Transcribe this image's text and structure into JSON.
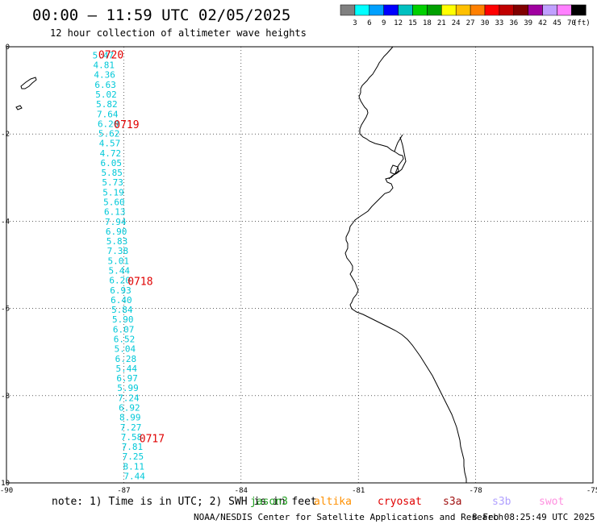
{
  "title": "00:00 – 11:59 UTC 02/05/2025",
  "subtitle": "12 hour collection of altimeter wave heights",
  "legend": {
    "unit": "(ft)",
    "colors": [
      "#808080",
      "#00ffff",
      "#00a0ff",
      "#0000ff",
      "#00c0c0",
      "#00d000",
      "#00a000",
      "#ffff00",
      "#ffc000",
      "#ff8000",
      "#ff0000",
      "#c00000",
      "#800000",
      "#a000a0",
      "#c0a0ff",
      "#ff80ff",
      "#000000"
    ],
    "labels": [
      "3",
      "6",
      "9",
      "12",
      "15",
      "18",
      "21",
      "24",
      "27",
      "30",
      "33",
      "36",
      "39",
      "42",
      "45",
      "70"
    ]
  },
  "axes": {
    "x_ticks": [
      "-90",
      "-87",
      "-84",
      "-81",
      "-78",
      "-75"
    ],
    "x_values": [
      -90,
      -87,
      -84,
      -81,
      -78,
      -75
    ],
    "y_ticks": [
      "0",
      "-2",
      "-4",
      "-6",
      "-8",
      "-10"
    ],
    "y_values": [
      0,
      -2,
      -4,
      -6,
      -8,
      -10
    ],
    "xlim": [
      -90,
      -75
    ],
    "ylim": [
      -10,
      0
    ]
  },
  "track": {
    "values": [
      "5.47",
      "4.81",
      "4.36",
      "6.63",
      "5.02",
      "5.82",
      "7.64",
      "6.20",
      "5.62",
      "4.57",
      "4.72",
      "6.05",
      "5.85",
      "5.73",
      "5.19",
      "5.60",
      "6.13",
      "7.94",
      "6.90",
      "5.83",
      "7.38",
      "5.01",
      "5.44",
      "6.20",
      "6.93",
      "6.40",
      "5.84",
      "5.90",
      "6.07",
      "6.52",
      "5.04",
      "6.28",
      "5.44",
      "6.97",
      "5.99",
      "7.24",
      "6.92",
      "8.99",
      "7.27",
      "7.58",
      "7.81",
      "7.25",
      "8.11",
      "7.44"
    ],
    "lon_start": -87.8,
    "lon_end": -87.0,
    "lat_start": -0.1,
    "lat_end": -9.75
  },
  "time_labels": [
    {
      "text": "0720",
      "lon": -87.65,
      "lat": -0.1
    },
    {
      "text": "0719",
      "lon": -87.25,
      "lat": -1.7
    },
    {
      "text": "0718",
      "lon": -86.9,
      "lat": -5.3
    },
    {
      "text": "0717",
      "lon": -86.6,
      "lat": -8.9
    }
  ],
  "note": {
    "prefix": "note: 1) Time is in UTC; 2) SWH is in feet",
    "sat_jason3": "jason3",
    "sat_altika": "altika",
    "sat_cryosat": "cryosat",
    "sat_s3a": "s3a",
    "sat_s3b": "s3b",
    "sat_swot": "swot"
  },
  "footer": {
    "credit": "NOAA/NESDIS Center for Satellite Applications and Research",
    "generated": "8 Feb 08:25:49 UTC 2025"
  }
}
